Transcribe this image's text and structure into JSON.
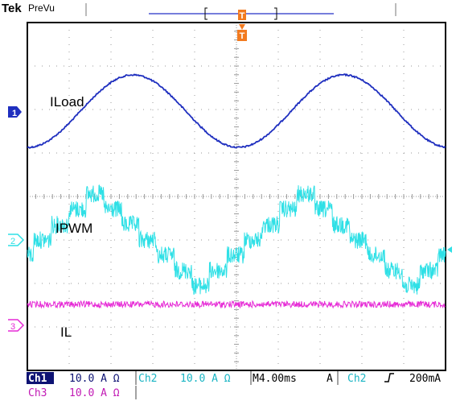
{
  "header": {
    "brand": "Tek",
    "mode": "PreVu",
    "trigger_marker": "T"
  },
  "channels": [
    {
      "id": "1",
      "trace_label": "ILoad",
      "color": "#1f2fbf"
    },
    {
      "id": "2",
      "trace_label": "IPWM",
      "color": "#2fe0e6"
    },
    {
      "id": "3",
      "trace_label": "IL",
      "color": "#e62ad6"
    }
  ],
  "status_bar": {
    "ch1_name": "Ch1",
    "ch1_scale": "10.0 A Ω",
    "ch2_name": "Ch2",
    "ch2_scale": "10.0 A Ω",
    "timebase": "M4.00ms",
    "trigger_mode": "A",
    "trigger_source": "Ch2",
    "trigger_slope_icon": "rising-edge-icon",
    "trigger_level": "200mA",
    "ch3_name": "Ch3",
    "ch3_scale": "10.0 A Ω"
  },
  "colors": {
    "ch1": "#1f2fbf",
    "ch2": "#2fe0e6",
    "ch3": "#e62ad6",
    "grid": "#9a9a9a",
    "trigger": "#f27a1f",
    "frame": "#000000",
    "status_ch1_bg": "#0d1273"
  }
}
